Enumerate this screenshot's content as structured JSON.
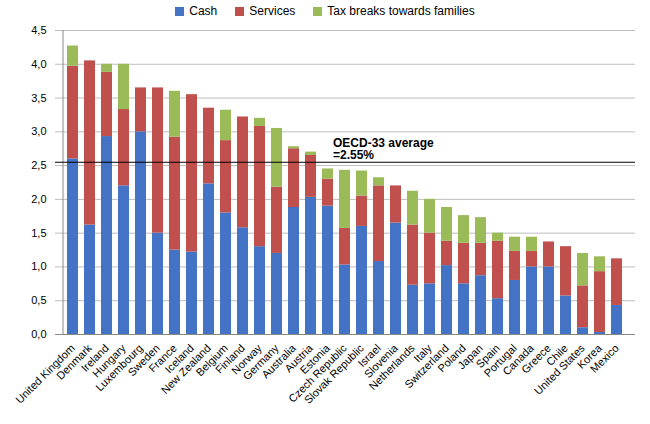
{
  "chart_data": {
    "type": "bar",
    "stacked": true,
    "grid": true,
    "legend": "top",
    "categories": [
      "United Kingdom",
      "Denmark",
      "Ireland",
      "Hungary",
      "Luxembourg",
      "Sweden",
      "France",
      "Iceland",
      "New Zealand",
      "Belgium",
      "Finland",
      "Norway",
      "Germany",
      "Australia",
      "Austria",
      "Estonia",
      "Czech Republic",
      "Slovak Republic",
      "Israel",
      "Slovenia",
      "Netherlands",
      "Italy",
      "Switzerland",
      "Poland",
      "Japan",
      "Spain",
      "Portugal",
      "Canada",
      "Greece",
      "Chile",
      "United States",
      "Korea",
      "Mexico"
    ],
    "series": [
      {
        "name": "Cash",
        "color": "#4472C4",
        "values": [
          2.6,
          1.62,
          2.93,
          2.2,
          3.0,
          1.5,
          1.25,
          1.22,
          2.23,
          1.8,
          1.58,
          1.3,
          1.2,
          1.88,
          2.03,
          1.9,
          1.03,
          1.6,
          1.08,
          1.65,
          0.73,
          0.75,
          1.02,
          0.75,
          0.87,
          0.53,
          0.8,
          1.0,
          1.0,
          0.57,
          0.1,
          0.03,
          0.43
        ]
      },
      {
        "name": "Services",
        "color": "#C0504D",
        "values": [
          1.37,
          2.43,
          0.95,
          1.13,
          0.65,
          2.15,
          1.67,
          2.33,
          1.12,
          1.07,
          1.64,
          1.78,
          0.98,
          0.87,
          0.62,
          0.4,
          0.54,
          0.45,
          1.12,
          0.55,
          0.89,
          0.75,
          0.36,
          0.6,
          0.48,
          0.85,
          0.43,
          0.23,
          0.37,
          0.73,
          0.62,
          0.9,
          0.69
        ]
      },
      {
        "name": "Tax breaks towards families",
        "color": "#9BBB59",
        "values": [
          0.3,
          0,
          0.12,
          0.67,
          0,
          0,
          0.68,
          0,
          0,
          0.45,
          0,
          0.12,
          0.87,
          0.03,
          0.05,
          0.15,
          0.86,
          0.37,
          0.12,
          0,
          0.5,
          0.5,
          0.5,
          0.41,
          0.38,
          0.12,
          0.21,
          0.21,
          0,
          0,
          0.48,
          0.22,
          0
        ]
      }
    ],
    "ylim": [
      0,
      4.5
    ],
    "yticks": [
      {
        "value": 0,
        "label": "0,0"
      },
      {
        "value": 0.5,
        "label": "0,5"
      },
      {
        "value": 1,
        "label": "1,0"
      },
      {
        "value": 1.5,
        "label": "1,5"
      },
      {
        "value": 2,
        "label": "2,0"
      },
      {
        "value": 2.5,
        "label": "2,5"
      },
      {
        "value": 3,
        "label": "3,0"
      },
      {
        "value": 3.5,
        "label": "3,5"
      },
      {
        "value": 4,
        "label": "4,0"
      },
      {
        "value": 4.5,
        "label": "4,5"
      }
    ],
    "annotations": [
      {
        "text": "OECD-33 average\n=2.55%",
        "y": 2.55
      }
    ]
  }
}
